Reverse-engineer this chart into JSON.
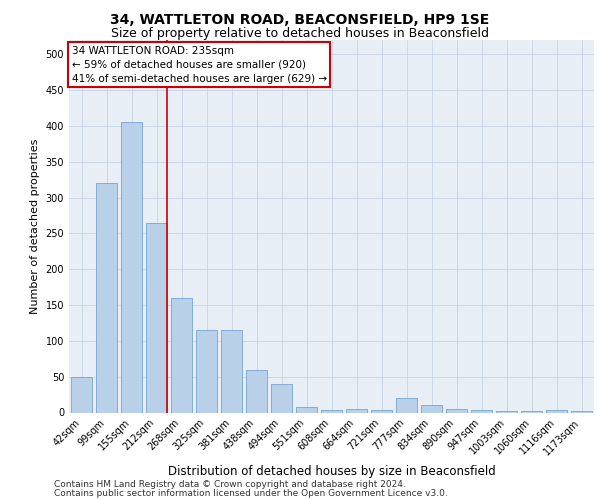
{
  "title": "34, WATTLETON ROAD, BEACONSFIELD, HP9 1SE",
  "subtitle": "Size of property relative to detached houses in Beaconsfield",
  "xlabel": "Distribution of detached houses by size in Beaconsfield",
  "ylabel": "Number of detached properties",
  "categories": [
    "42sqm",
    "99sqm",
    "155sqm",
    "212sqm",
    "268sqm",
    "325sqm",
    "381sqm",
    "438sqm",
    "494sqm",
    "551sqm",
    "608sqm",
    "664sqm",
    "721sqm",
    "777sqm",
    "834sqm",
    "890sqm",
    "947sqm",
    "1003sqm",
    "1060sqm",
    "1116sqm",
    "1173sqm"
  ],
  "values": [
    50,
    320,
    405,
    265,
    160,
    115,
    115,
    60,
    40,
    8,
    3,
    5,
    3,
    20,
    10,
    5,
    3,
    2,
    2,
    3,
    2
  ],
  "bar_color": "#b8d0e8",
  "bar_edge_color": "#6699cc",
  "grid_color": "#c8d4e4",
  "background_color": "#e8eef6",
  "annotation_line1": "34 WATTLETON ROAD: 235sqm",
  "annotation_line2": "← 59% of detached houses are smaller (920)",
  "annotation_line3": "41% of semi-detached houses are larger (629) →",
  "annotation_box_facecolor": "#ffffff",
  "annotation_box_edgecolor": "#cc0000",
  "vline_color": "#cc0000",
  "vline_x": 3.41,
  "ylim": [
    0,
    520
  ],
  "yticks": [
    0,
    50,
    100,
    150,
    200,
    250,
    300,
    350,
    400,
    450,
    500
  ],
  "footer_line1": "Contains HM Land Registry data © Crown copyright and database right 2024.",
  "footer_line2": "Contains public sector information licensed under the Open Government Licence v3.0.",
  "title_fontsize": 10,
  "subtitle_fontsize": 9,
  "xlabel_fontsize": 8.5,
  "ylabel_fontsize": 8,
  "tick_fontsize": 7,
  "annotation_fontsize": 7.5,
  "footer_fontsize": 6.5
}
